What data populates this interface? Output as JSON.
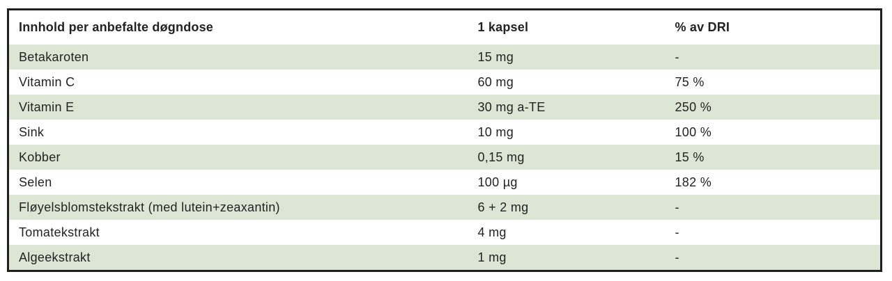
{
  "table": {
    "columns": [
      "Innhold per anbefalte døgndose",
      "1 kapsel",
      "% av DRI"
    ],
    "rows": [
      {
        "name": "Betakaroten",
        "amount": "15 mg",
        "dri": "-"
      },
      {
        "name": "Vitamin C",
        "amount": "60 mg",
        "dri": "75 %"
      },
      {
        "name": "Vitamin E",
        "amount": "30 mg a-TE",
        "dri": "250 %"
      },
      {
        "name": "Sink",
        "amount": "10 mg",
        "dri": "100 %"
      },
      {
        "name": "Kobber",
        "amount": "0,15 mg",
        "dri": "15 %"
      },
      {
        "name": "Selen",
        "amount": "100 µg",
        "dri": "182 %"
      },
      {
        "name": "Fløyelsblomstekstrakt (med lutein+zeaxantin)",
        "amount": "6 + 2 mg",
        "dri": "-"
      },
      {
        "name": "Tomatekstrakt",
        "amount": "4 mg",
        "dri": "-"
      },
      {
        "name": "Algeekstrakt",
        "amount": "1 mg",
        "dri": "-"
      }
    ],
    "colors": {
      "row_alt": "#dde6d5",
      "border": "#1f1f1f",
      "text": "#232323"
    }
  }
}
